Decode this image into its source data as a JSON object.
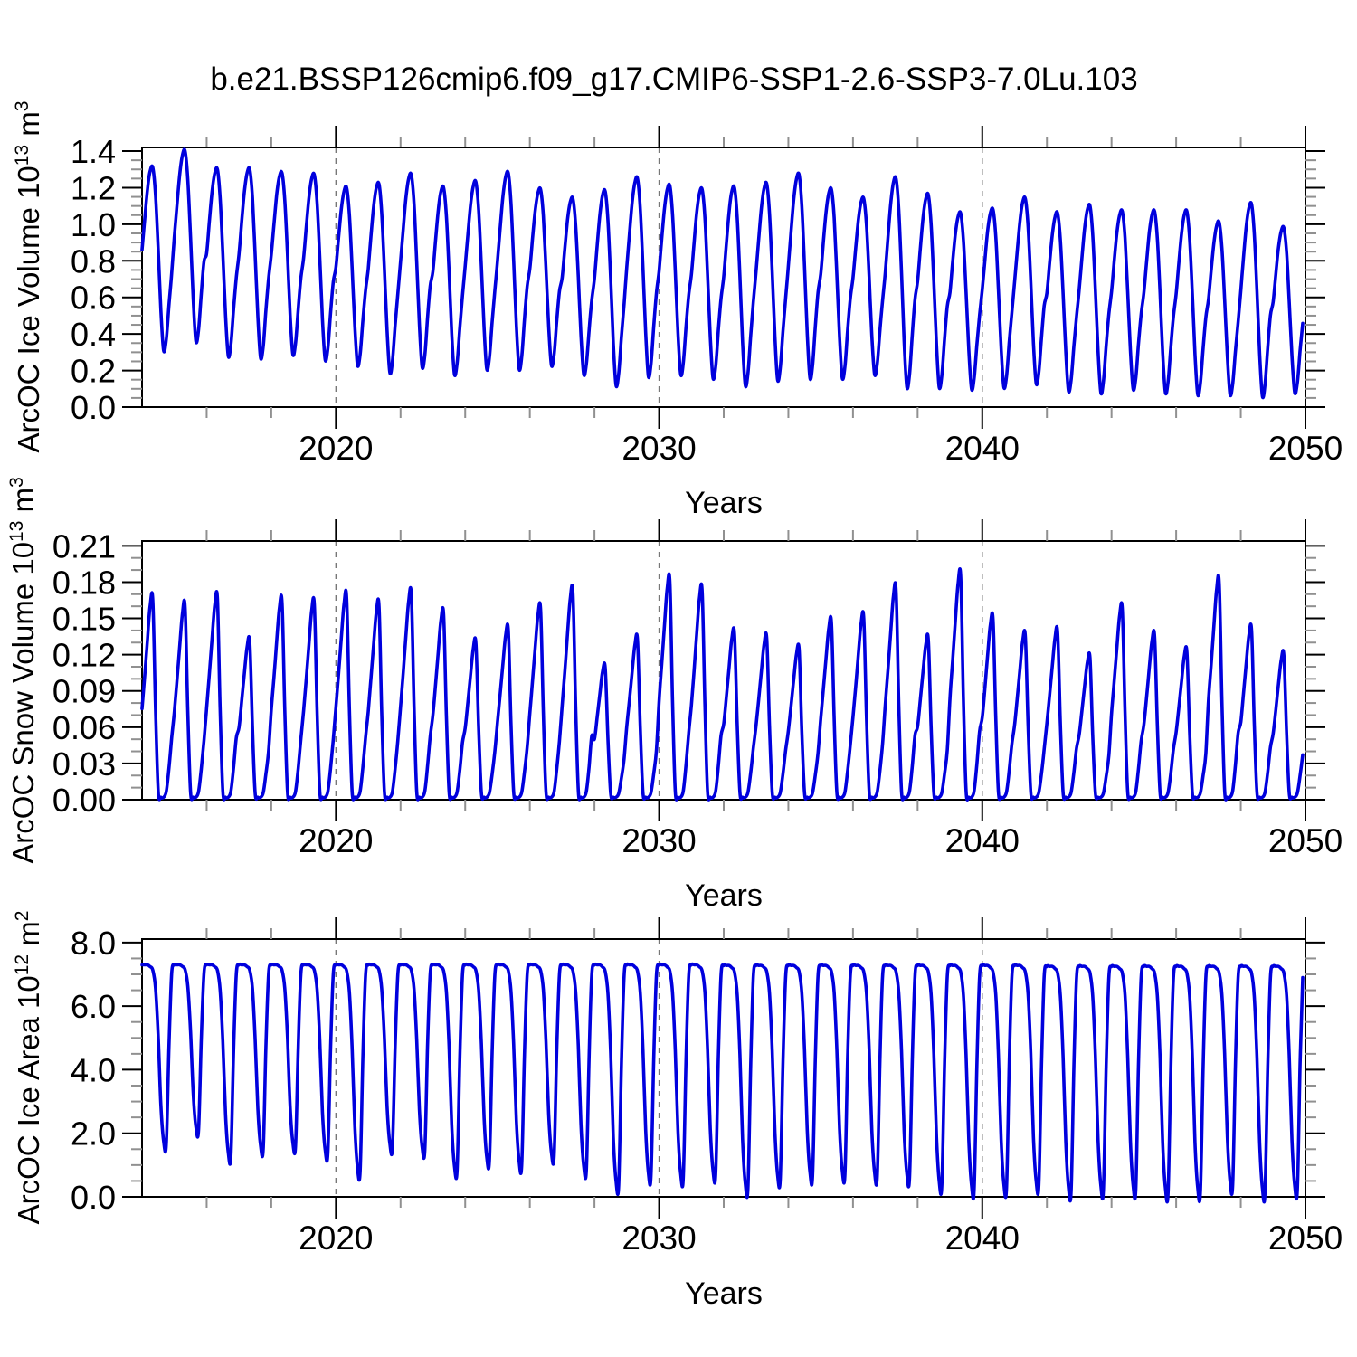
{
  "title": "b.e21.BSSP126cmip6.f09_g17.CMIP6-SSP1-2.6-SSP3-7.0Lu.103",
  "background_color": "#ffffff",
  "line_color": "#0000dd",
  "grid_color": "#777777",
  "minor_tick_color": "#909090",
  "chart_data": [
    {
      "type": "line",
      "panel": "top",
      "y_label_prefix": "ArcOC Ice Volume 10",
      "y_label_exp": "13",
      "y_label_unit": " m",
      "y_label_unit_exp": "3",
      "x_label": "Years",
      "x_range": [
        2014,
        2050
      ],
      "x_ticks": [
        2020,
        2030,
        2040,
        2050
      ],
      "x_minor_step": 2,
      "grid_x": [
        2020,
        2030,
        2040
      ],
      "y_ticks": [
        "0.0",
        "0.2",
        "0.4",
        "0.6",
        "0.8",
        "1.0",
        "1.2",
        "1.4"
      ],
      "y_max": 1.42,
      "y_minor_step": 0.05,
      "series": {
        "name": "Arctic Ocean ice volume, monthly seasonal cycle",
        "sampling": "monthly",
        "years": [
          2014,
          2015,
          2016,
          2017,
          2018,
          2019,
          2020,
          2021,
          2022,
          2023,
          2024,
          2025,
          2026,
          2027,
          2028,
          2029,
          2030,
          2031,
          2032,
          2033,
          2034,
          2035,
          2036,
          2037,
          2038,
          2039,
          2040,
          2041,
          2042,
          2043,
          2044,
          2045,
          2046,
          2047,
          2048,
          2049
        ],
        "annual_max": [
          1.31,
          1.4,
          1.3,
          1.3,
          1.28,
          1.27,
          1.2,
          1.22,
          1.27,
          1.2,
          1.23,
          1.28,
          1.19,
          1.14,
          1.18,
          1.25,
          1.21,
          1.19,
          1.2,
          1.22,
          1.27,
          1.19,
          1.14,
          1.25,
          1.16,
          1.06,
          1.08,
          1.14,
          1.06,
          1.1,
          1.07,
          1.07,
          1.07,
          1.01,
          1.11,
          0.98
        ],
        "annual_min": [
          0.31,
          0.36,
          0.28,
          0.27,
          0.29,
          0.26,
          0.23,
          0.19,
          0.22,
          0.18,
          0.21,
          0.21,
          0.23,
          0.18,
          0.12,
          0.17,
          0.18,
          0.16,
          0.12,
          0.15,
          0.16,
          0.16,
          0.18,
          0.11,
          0.11,
          0.1,
          0.11,
          0.13,
          0.09,
          0.08,
          0.1,
          0.08,
          0.07,
          0.07,
          0.06,
          0.08
        ],
        "monthly_shape": [
          0.55,
          0.72,
          0.88,
          0.98,
          1.0,
          0.85,
          0.55,
          0.22,
          0.0,
          0.06,
          0.25,
          0.42
        ]
      }
    },
    {
      "type": "line",
      "panel": "middle",
      "y_label_prefix": "ArcOC Snow Volume 10",
      "y_label_exp": "13",
      "y_label_unit": " m",
      "y_label_unit_exp": "3",
      "x_label": "Years",
      "x_range": [
        2014,
        2050
      ],
      "x_ticks": [
        2020,
        2030,
        2040,
        2050
      ],
      "x_minor_step": 2,
      "grid_x": [
        2020,
        2030,
        2040
      ],
      "y_ticks": [
        "0.00",
        "0.03",
        "0.06",
        "0.09",
        "0.12",
        "0.15",
        "0.18",
        "0.21"
      ],
      "y_max": 0.214,
      "y_minor_step": 0.01,
      "series": {
        "name": "Arctic Ocean snow volume, monthly seasonal cycle",
        "sampling": "monthly",
        "years": [
          2014,
          2015,
          2016,
          2017,
          2018,
          2019,
          2020,
          2021,
          2022,
          2023,
          2024,
          2025,
          2026,
          2027,
          2028,
          2029,
          2030,
          2031,
          2032,
          2033,
          2034,
          2035,
          2036,
          2037,
          2038,
          2039,
          2040,
          2041,
          2042,
          2043,
          2044,
          2045,
          2046,
          2047,
          2048,
          2049
        ],
        "annual_max": [
          0.165,
          0.159,
          0.166,
          0.13,
          0.163,
          0.161,
          0.167,
          0.16,
          0.169,
          0.153,
          0.129,
          0.14,
          0.157,
          0.171,
          0.109,
          0.132,
          0.18,
          0.172,
          0.137,
          0.133,
          0.124,
          0.146,
          0.15,
          0.173,
          0.132,
          0.184,
          0.149,
          0.135,
          0.138,
          0.117,
          0.157,
          0.135,
          0.122,
          0.179,
          0.14,
          0.119
        ],
        "annual_min": [
          0.002,
          0.002,
          0.002,
          0.002,
          0.002,
          0.002,
          0.002,
          0.002,
          0.002,
          0.002,
          0.002,
          0.002,
          0.002,
          0.002,
          0.002,
          0.002,
          0.002,
          0.002,
          0.002,
          0.002,
          0.002,
          0.002,
          0.002,
          0.002,
          0.002,
          0.002,
          0.002,
          0.002,
          0.002,
          0.002,
          0.002,
          0.002,
          0.002,
          0.002,
          0.002,
          0.002
        ],
        "monthly_shape": [
          0.45,
          0.62,
          0.8,
          0.97,
          1.0,
          0.45,
          0.03,
          0.0,
          0.0,
          0.03,
          0.15,
          0.3
        ]
      }
    },
    {
      "type": "line",
      "panel": "bottom",
      "y_label_prefix": "ArcOC Ice Area 10",
      "y_label_exp": "12",
      "y_label_unit": " m",
      "y_label_unit_exp": "2",
      "x_label": "Years",
      "x_range": [
        2014,
        2050
      ],
      "x_ticks": [
        2020,
        2030,
        2040,
        2050
      ],
      "x_minor_step": 2,
      "grid_x": [
        2020,
        2030,
        2040
      ],
      "y_ticks": [
        "0.0",
        "2.0",
        "4.0",
        "6.0",
        "8.0"
      ],
      "y_max": 8.11,
      "y_minor_step": 0.5,
      "series": {
        "name": "Arctic Ocean ice area, monthly seasonal cycle",
        "sampling": "monthly",
        "years": [
          2014,
          2015,
          2016,
          2017,
          2018,
          2019,
          2020,
          2021,
          2022,
          2023,
          2024,
          2025,
          2026,
          2027,
          2028,
          2029,
          2030,
          2031,
          2032,
          2033,
          2034,
          2035,
          2036,
          2037,
          2038,
          2039,
          2040,
          2041,
          2042,
          2043,
          2044,
          2045,
          2046,
          2047,
          2048,
          2049
        ],
        "annual_max": [
          7.3,
          7.3,
          7.3,
          7.3,
          7.3,
          7.3,
          7.3,
          7.3,
          7.3,
          7.3,
          7.3,
          7.3,
          7.3,
          7.3,
          7.3,
          7.3,
          7.3,
          7.3,
          7.28,
          7.28,
          7.28,
          7.28,
          7.28,
          7.28,
          7.28,
          7.28,
          7.28,
          7.28,
          7.25,
          7.25,
          7.25,
          7.25,
          7.25,
          7.25,
          7.25,
          7.25
        ],
        "annual_min": [
          1.65,
          2.1,
          1.28,
          1.51,
          1.6,
          1.37,
          0.8,
          1.57,
          1.46,
          0.85,
          1.14,
          1.0,
          1.28,
          0.85,
          0.37,
          0.65,
          0.6,
          0.71,
          0.28,
          0.57,
          0.65,
          0.71,
          0.65,
          0.6,
          0.37,
          0.23,
          0.28,
          0.37,
          0.17,
          0.23,
          0.23,
          0.14,
          0.15,
          0.37,
          0.14,
          0.23
        ],
        "monthly_shape": [
          1.0,
          1.0,
          1.0,
          0.99,
          0.97,
          0.87,
          0.6,
          0.22,
          0.02,
          0.0,
          0.55,
          0.95
        ]
      }
    }
  ]
}
